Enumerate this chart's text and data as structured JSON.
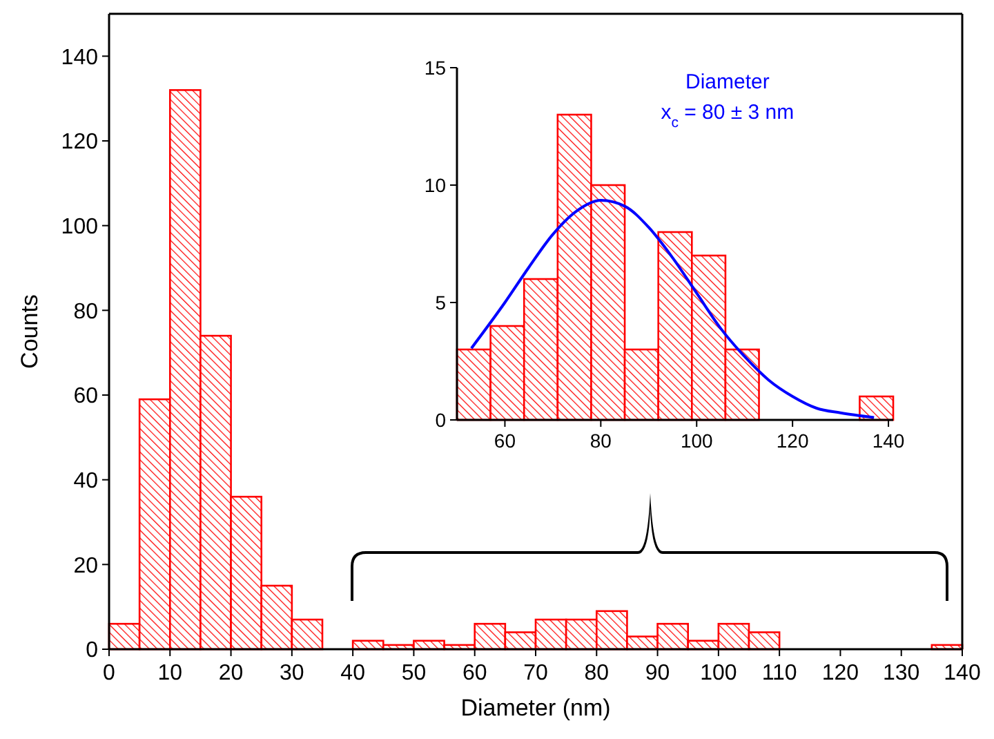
{
  "chart_data": [
    {
      "type": "histogram",
      "xlabel": "Diameter (nm)",
      "ylabel": "Counts",
      "bins": [
        0,
        5,
        10,
        15,
        20,
        25,
        30,
        35,
        40,
        45,
        50,
        55,
        60,
        65,
        70,
        75,
        80,
        85,
        90,
        95,
        100,
        105,
        110,
        115,
        120,
        125,
        130,
        135,
        140
      ],
      "values": [
        6,
        59,
        132,
        74,
        36,
        15,
        7,
        0,
        2,
        1,
        2,
        1,
        6,
        4,
        7,
        7,
        9,
        3,
        6,
        2,
        6,
        4,
        0,
        0,
        0,
        0,
        0,
        1
      ],
      "color": "#ff0000",
      "xlim": [
        0,
        140
      ],
      "xticks": [
        0,
        10,
        20,
        30,
        40,
        50,
        60,
        70,
        80,
        90,
        100,
        110,
        120,
        130,
        140
      ],
      "ylim": [
        0,
        150
      ],
      "yticks": [
        0,
        20,
        40,
        60,
        80,
        100,
        120,
        140
      ]
    },
    {
      "type": "histogram",
      "bins": [
        50,
        57,
        64,
        71,
        78,
        85,
        92,
        99,
        106,
        113,
        120,
        127,
        134,
        141
      ],
      "values": [
        3,
        4,
        6,
        13,
        10,
        3,
        8,
        7,
        3,
        0,
        0,
        0,
        1
      ],
      "color": "#ff0000",
      "series": [
        {
          "type": "line",
          "color": "#0000ff",
          "x": [
            53,
            60,
            65,
            70,
            75,
            80,
            85,
            90,
            95,
            100,
            105,
            110,
            115,
            120,
            125,
            130,
            137
          ],
          "values": [
            3.05,
            5.0,
            6.5,
            7.9,
            8.9,
            9.35,
            9.1,
            8.2,
            6.9,
            5.4,
            3.9,
            2.7,
            1.7,
            1.0,
            0.5,
            0.3,
            0.1
          ]
        }
      ],
      "annotations": [
        "Diameter",
        "x$_{c}$ = 80 ± 3 nm"
      ],
      "xlim": [
        50,
        141
      ],
      "xticks": [
        60,
        80,
        100,
        120,
        140
      ],
      "ylim": [
        0,
        15
      ],
      "yticks": [
        0,
        5,
        10,
        15
      ]
    }
  ]
}
